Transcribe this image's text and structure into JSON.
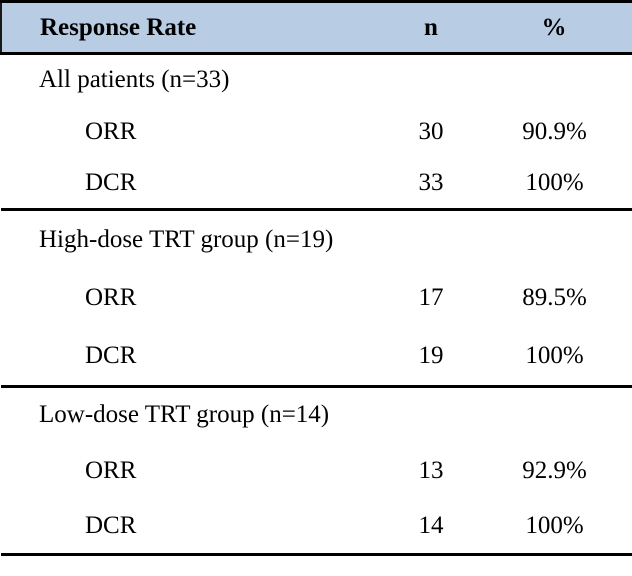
{
  "table": {
    "header": {
      "col_label": "Response Rate",
      "col_n": "n",
      "col_pct": "%"
    },
    "colors": {
      "header_bg": "#b8cce4",
      "rule": "#000000",
      "text": "#000000"
    },
    "sections": [
      {
        "title": "All patients (n=33)",
        "rows": [
          {
            "label": "ORR",
            "n": "30",
            "pct": "90.9%"
          },
          {
            "label": "DCR",
            "n": "33",
            "pct": "100%"
          }
        ]
      },
      {
        "title": "High-dose TRT group (n=19)",
        "rows": [
          {
            "label": "ORR",
            "n": "17",
            "pct": "89.5%"
          },
          {
            "label": "DCR",
            "n": "19",
            "pct": "100%"
          }
        ]
      },
      {
        "title": "Low-dose TRT group (n=14)",
        "rows": [
          {
            "label": "ORR",
            "n": "13",
            "pct": "92.9%"
          },
          {
            "label": "DCR",
            "n": "14",
            "pct": "100%"
          }
        ]
      }
    ]
  },
  "chart_data": {
    "type": "table",
    "title": "Response Rate",
    "columns": [
      "Response Rate",
      "n",
      "%"
    ],
    "sections": [
      {
        "group": "All patients (n=33)",
        "rows": [
          {
            "measure": "ORR",
            "n": 30,
            "percent": "90.9%"
          },
          {
            "measure": "DCR",
            "n": 33,
            "percent": "100%"
          }
        ]
      },
      {
        "group": "High-dose TRT group (n=19)",
        "rows": [
          {
            "measure": "ORR",
            "n": 17,
            "percent": "89.5%"
          },
          {
            "measure": "DCR",
            "n": 19,
            "percent": "100%"
          }
        ]
      },
      {
        "group": "Low-dose TRT group (n=14)",
        "rows": [
          {
            "measure": "ORR",
            "n": 13,
            "percent": "92.9%"
          },
          {
            "measure": "DCR",
            "n": 14,
            "percent": "100%"
          }
        ]
      }
    ],
    "layout": {
      "header_background": "#b8cce4",
      "rules": "horizontal only: top, below header, between groups, bottom"
    }
  }
}
